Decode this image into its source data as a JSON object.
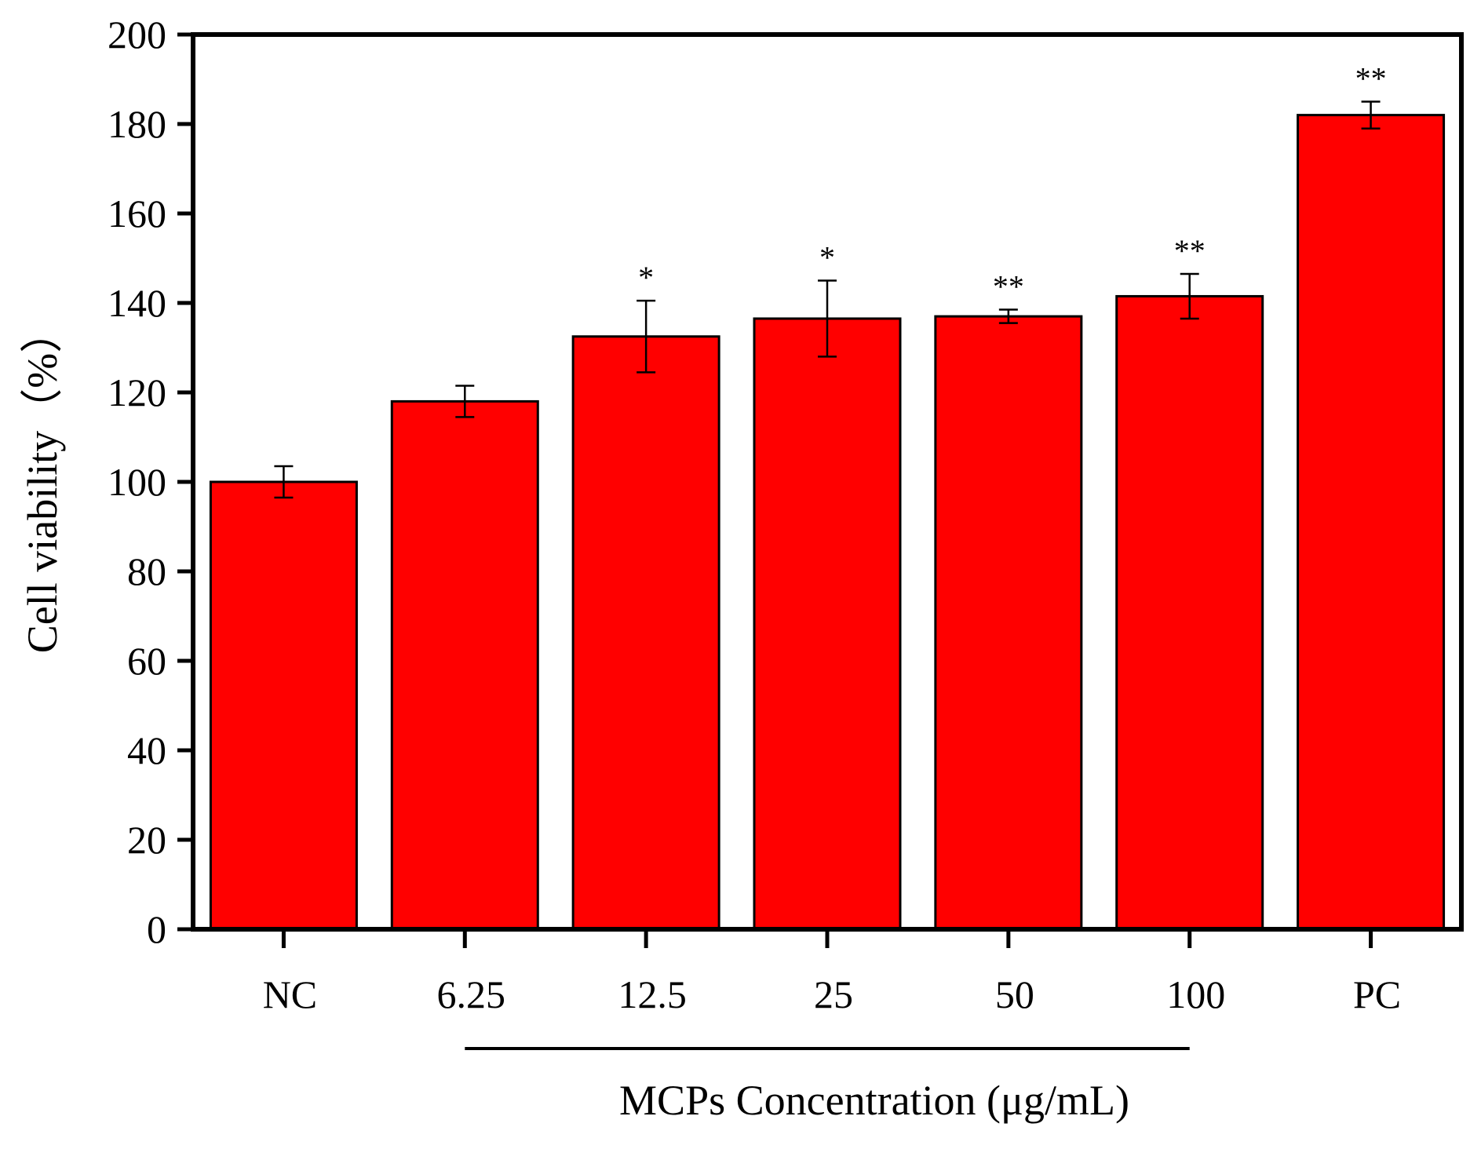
{
  "chart_data": {
    "type": "bar",
    "title": "",
    "xlabel": "",
    "ylabel": "Cell viability（%）",
    "ylim": [
      0,
      200
    ],
    "yticks": [
      0,
      20,
      40,
      60,
      80,
      100,
      120,
      140,
      160,
      180,
      200
    ],
    "categories": [
      "NC",
      "6.25",
      "12.5",
      "25",
      "50",
      "100",
      "PC"
    ],
    "values": [
      100,
      118,
      132.5,
      136.5,
      137,
      141.5,
      182
    ],
    "errors": [
      3.5,
      3.5,
      8,
      8.5,
      1.5,
      5,
      3
    ],
    "significance": [
      "",
      "",
      "*",
      "*",
      "**",
      "**",
      "**"
    ],
    "group_label": "MCPs Concentration (μg/mL)",
    "group_span": [
      "6.25",
      "100"
    ],
    "bar_color": "#ff0000",
    "edge_color": "#000000",
    "grid": false
  }
}
